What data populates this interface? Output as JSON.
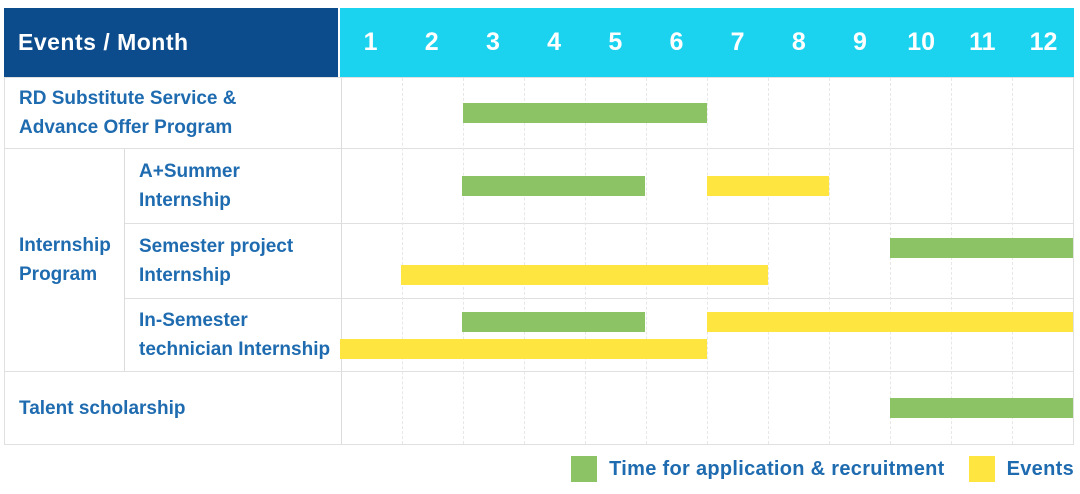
{
  "header": {
    "corner_label": "Events / Month",
    "months": [
      "1",
      "2",
      "3",
      "4",
      "5",
      "6",
      "7",
      "8",
      "9",
      "10",
      "11",
      "12"
    ]
  },
  "colors": {
    "header_navy": "#0D4C8C",
    "header_cyan": "#1CD3EF",
    "recruitment_green": "#8BC365",
    "event_yellow": "#FFE540",
    "label_blue": "#1E6BB0"
  },
  "rows": [
    {
      "label": "RD Substitute Service &\nAdvance Offer Program",
      "lines": [
        [
          {
            "type": "recruitment",
            "start": 2,
            "end": 6
          }
        ]
      ]
    },
    {
      "group": "Internship\nProgram",
      "label": "A+Summer\nInternship",
      "lines": [
        [
          {
            "type": "recruitment",
            "start": 2,
            "end": 5
          },
          {
            "type": "event",
            "start": 6,
            "end": 8
          }
        ]
      ]
    },
    {
      "label": "Semester project\nInternship",
      "lines": [
        [
          {
            "type": "recruitment",
            "start": 9,
            "end": 12
          }
        ],
        [
          {
            "type": "event",
            "start": 1,
            "end": 7
          }
        ]
      ]
    },
    {
      "label": "In-Semester\ntechnician Internship",
      "lines": [
        [
          {
            "type": "recruitment",
            "start": 2,
            "end": 5
          },
          {
            "type": "event",
            "start": 6,
            "end": 12
          }
        ],
        [
          {
            "type": "event",
            "start": 0,
            "end": 6
          }
        ]
      ]
    },
    {
      "label": "Talent scholarship",
      "lines": [
        [
          {
            "type": "recruitment",
            "start": 9,
            "end": 12
          }
        ]
      ]
    }
  ],
  "legend": [
    {
      "type": "recruitment",
      "label": "Time for application & recruitment"
    },
    {
      "type": "event",
      "label": "Events"
    }
  ],
  "chart_data": {
    "type": "bar",
    "subtype": "gantt",
    "title": "Events / Month",
    "xlabel": "Month",
    "x_categories": [
      1,
      2,
      3,
      4,
      5,
      6,
      7,
      8,
      9,
      10,
      11,
      12
    ],
    "legend": [
      "Time for application & recruitment",
      "Events"
    ],
    "legend_position": "bottom-right",
    "grid": true,
    "rows": [
      {
        "category": "RD Substitute Service & Advance Offer Program",
        "bars": [
          {
            "series": "Time for application & recruitment",
            "start_month": 3,
            "end_month": 6
          }
        ]
      },
      {
        "category": "Internship Program / A+Summer Internship",
        "bars": [
          {
            "series": "Time for application & recruitment",
            "start_month": 3,
            "end_month": 5
          },
          {
            "series": "Events",
            "start_month": 7,
            "end_month": 8
          }
        ]
      },
      {
        "category": "Internship Program / Semester project Internship",
        "bars": [
          {
            "series": "Time for application & recruitment",
            "start_month": 10,
            "end_month": 12
          },
          {
            "series": "Events",
            "start_month": 2,
            "end_month": 7
          }
        ]
      },
      {
        "category": "Internship Program / In-Semester technician Internship",
        "bars": [
          {
            "series": "Time for application & recruitment",
            "start_month": 3,
            "end_month": 5
          },
          {
            "series": "Events",
            "start_month": 7,
            "end_month": 12
          },
          {
            "series": "Events",
            "start_month": 1,
            "end_month": 6
          }
        ]
      },
      {
        "category": "Talent scholarship",
        "bars": [
          {
            "series": "Time for application & recruitment",
            "start_month": 10,
            "end_month": 12
          }
        ]
      }
    ]
  }
}
